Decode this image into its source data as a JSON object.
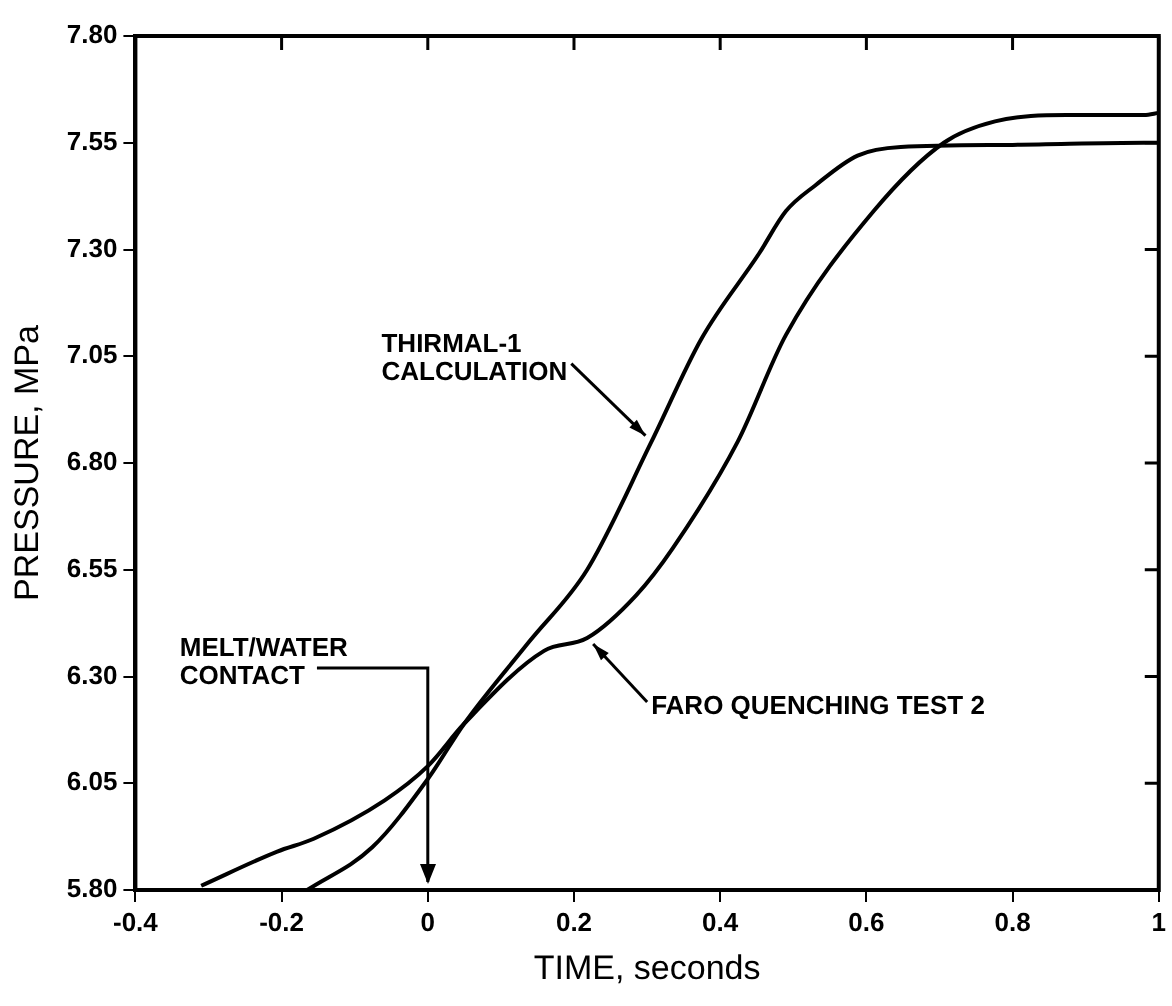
{
  "chart_data": {
    "type": "line",
    "xlabel": "TIME, seconds",
    "ylabel": "PRESSURE, MPa",
    "xlim": [
      -0.4,
      1
    ],
    "xticks": [
      -0.4,
      -0.2,
      0,
      0.2,
      0.4,
      0.6,
      0.8,
      1
    ],
    "ylim": [
      5.8,
      7.8
    ],
    "yticks": [
      {
        "value": 5.8,
        "label": "5.80"
      },
      {
        "value": 6.05,
        "label": "6.05"
      },
      {
        "value": 6.3,
        "label": "6.30"
      },
      {
        "value": 6.55,
        "label": "6.55"
      },
      {
        "value": 6.8,
        "label": "6.80"
      },
      {
        "value": 7.05,
        "label": "7.05"
      },
      {
        "value": 7.3,
        "label": "7.30"
      },
      {
        "value": 7.55,
        "label": "7.55"
      },
      {
        "value": 7.8,
        "label": "7.80"
      }
    ],
    "grid": false,
    "legend": false,
    "marker": "none",
    "line_style": "solid",
    "series": [
      {
        "color": "#000000",
        "x": [
          -0.165,
          -0.076,
          0,
          0.05,
          0.138,
          0.218,
          0.306,
          0.374,
          0.453,
          0.49,
          0.53,
          0.588,
          0.647,
          0.8,
          0.98,
          1
        ],
        "values": [
          5.8,
          5.9,
          6.06,
          6.19,
          6.38,
          6.55,
          6.85,
          7.09,
          7.29,
          7.39,
          7.45,
          7.52,
          7.54,
          7.545,
          7.55,
          7.55
        ]
      },
      {
        "color": "#000000",
        "x": [
          -0.31,
          -0.206,
          -0.156,
          -0.059,
          0,
          0.05,
          0.159,
          0.218,
          0.285,
          0.335,
          0.424,
          0.49,
          0.61,
          0.706,
          0.776,
          0.874,
          0.98,
          1
        ],
        "values": [
          5.81,
          5.89,
          5.92,
          6.01,
          6.09,
          6.19,
          6.36,
          6.39,
          6.49,
          6.6,
          6.85,
          7.1,
          7.39,
          7.55,
          7.6,
          7.615,
          7.615,
          7.62
        ]
      }
    ],
    "ref_lines": [
      {
        "axis": "x",
        "value": 0,
        "label": "MELT/WATER CONTACT"
      }
    ],
    "annotations": [
      {
        "text": "THIRMAL-1 CALCULATION",
        "x": 0.306,
        "y": 6.85
      },
      {
        "text": "FARO QUENCHING TEST 2",
        "x": 0.218,
        "y": 6.39
      }
    ]
  }
}
